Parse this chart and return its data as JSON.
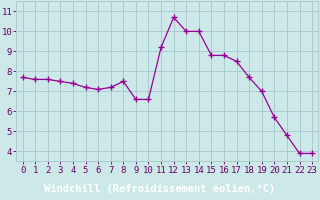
{
  "hours": [
    0,
    1,
    2,
    3,
    4,
    5,
    6,
    7,
    8,
    9,
    10,
    11,
    12,
    13,
    14,
    15,
    16,
    17,
    18,
    19,
    20,
    21,
    22,
    23
  ],
  "values": [
    7.7,
    7.6,
    7.6,
    7.5,
    7.4,
    7.2,
    7.1,
    7.2,
    7.5,
    6.6,
    6.6,
    9.2,
    10.7,
    10.0,
    10.0,
    8.8,
    8.8,
    8.5,
    7.7,
    7.0,
    5.7,
    4.8,
    3.9,
    3.9
  ],
  "line_color": "#990099",
  "marker": "+",
  "bg_color": "#cce8e8",
  "grid_color": "#aacccc",
  "xlabel": "Windchill (Refroidissement éolien,°C)",
  "xlim": [
    -0.5,
    23.5
  ],
  "ylim": [
    3.5,
    11.5
  ],
  "yticks": [
    4,
    5,
    6,
    7,
    8,
    9,
    10,
    11
  ],
  "xticks": [
    0,
    1,
    2,
    3,
    4,
    5,
    6,
    7,
    8,
    9,
    10,
    11,
    12,
    13,
    14,
    15,
    16,
    17,
    18,
    19,
    20,
    21,
    22,
    23
  ],
  "tick_color": "#660066",
  "font_size": 6.5,
  "label_font_size": 7.5,
  "xlabel_bg": "#7700aa",
  "xlabel_fg": "#ffffff"
}
